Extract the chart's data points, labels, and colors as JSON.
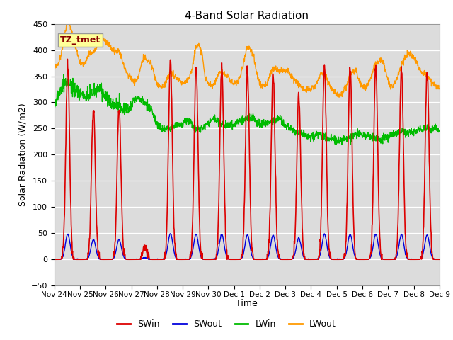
{
  "title": "4-Band Solar Radiation",
  "ylabel": "Solar Radiation (W/m2)",
  "xlabel": "Time",
  "ylim": [
    -50,
    450
  ],
  "background_color": "#dcdcdc",
  "fig_bg_color": "#ffffff",
  "line_colors": {
    "SWin": "#dd0000",
    "SWout": "#0000dd",
    "LWin": "#00bb00",
    "LWout": "#ff9900"
  },
  "tz_label": "TZ_tmet",
  "tz_box_color": "#ffff99",
  "tz_text_color": "#880000",
  "hours_total": 360,
  "xtick_labels": [
    "Nov 24",
    "Nov 25",
    "Nov 26",
    "Nov 27",
    "Nov 28",
    "Nov 29",
    "Nov 30",
    "Dec 1",
    "Dec 2",
    "Dec 3",
    "Dec 4",
    "Dec 5",
    "Dec 6",
    "Dec 7",
    "Dec 8",
    "Dec 9"
  ]
}
